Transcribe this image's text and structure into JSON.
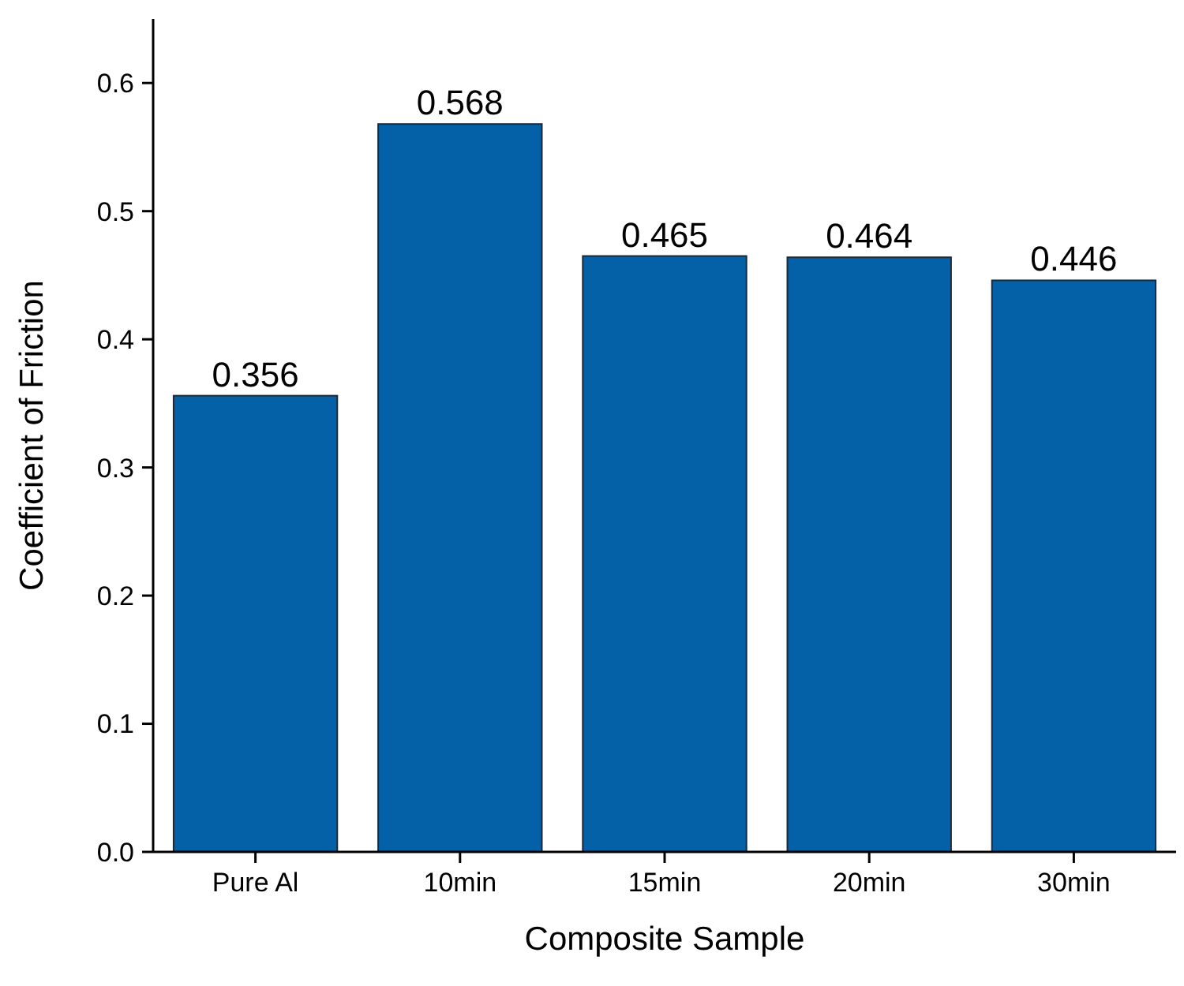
{
  "chart_data": {
    "type": "bar",
    "xlabel": "Composite Sample",
    "ylabel": "Coefficient of Friction",
    "categories": [
      "Pure Al",
      "10min",
      "15min",
      "20min",
      "30min"
    ],
    "values": [
      0.356,
      0.568,
      0.465,
      0.464,
      0.446
    ],
    "color": "#0461a7",
    "ylim": [
      0,
      0.65
    ],
    "yticks": [
      {
        "value": 0,
        "label": "0.0"
      },
      0.1,
      0.2,
      0.3,
      0.4,
      0.5,
      0.6
    ],
    "data_labels": true,
    "grid": false
  }
}
